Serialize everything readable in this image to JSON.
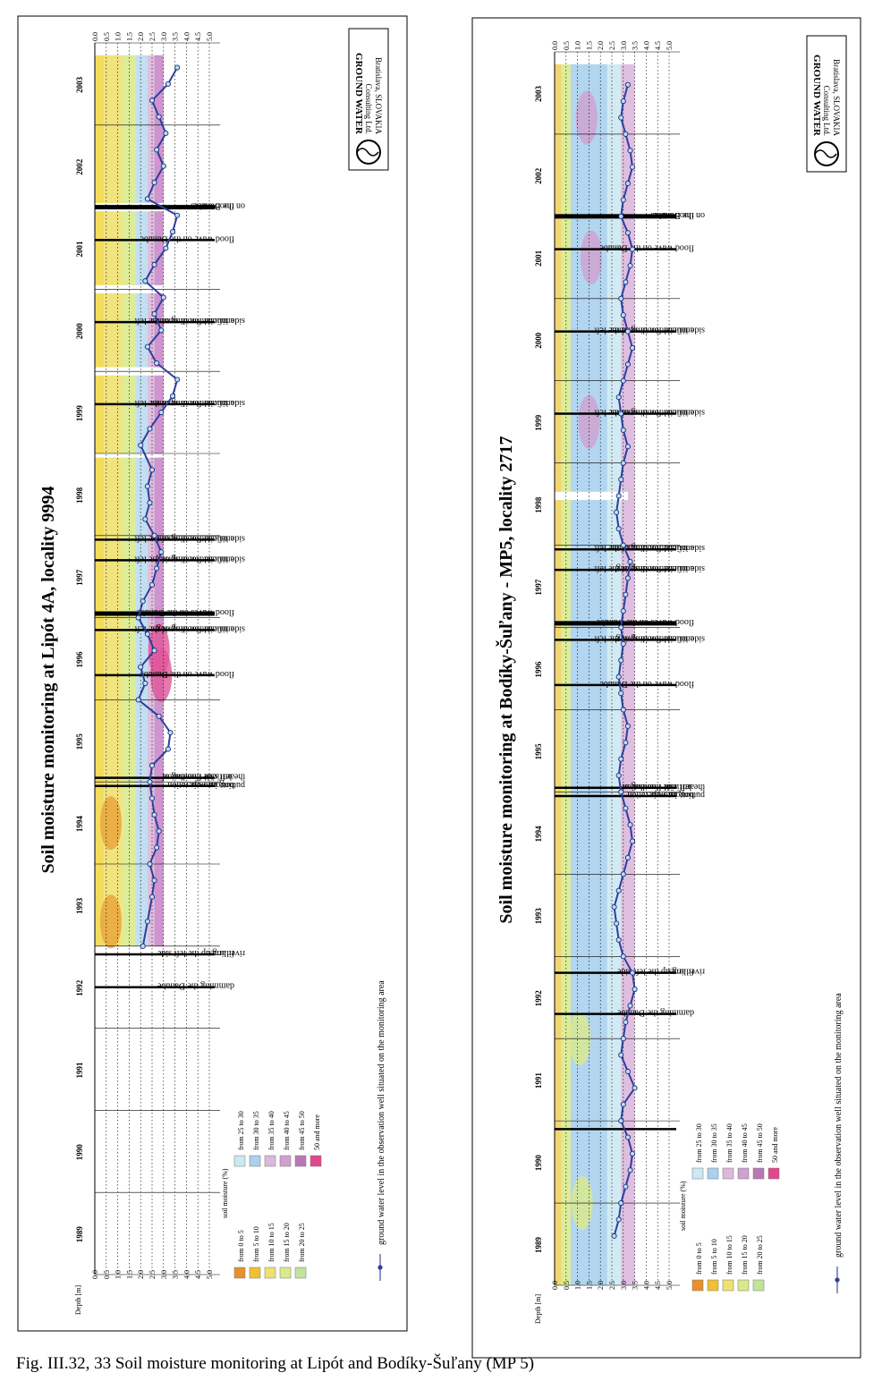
{
  "figure": {
    "caption": "Fig. III.32, 33  Soil moisture monitoring at Lipót and Bodíky-Šuľany (MP 5)"
  },
  "logo": {
    "lines": [
      "GROUND WATER",
      "Consulting Ltd.",
      "Bratislava, SLOVAKIA"
    ]
  },
  "chart_data": [
    {
      "type": "heatmap",
      "title": "Soil moisture monitoring at Lipót 4A, locality 9994",
      "xlabel": "Depth [m]",
      "depth_ticks": [
        "0.0",
        "0.5",
        "1.0",
        "1.5",
        "2.0",
        "2.5",
        "3.0",
        "3.5",
        "4.0",
        "4.5",
        "5.0"
      ],
      "depth_range": [
        0,
        5
      ],
      "years": [
        "1989",
        "1990",
        "1991",
        "1992",
        "1993",
        "1994",
        "1995",
        "1996",
        "1997",
        "1998",
        "1999",
        "2000",
        "2001",
        "2002",
        "2003"
      ],
      "time_range": [
        1989,
        2004
      ],
      "data_start": 1993.0,
      "moisture_bands": [
        {
          "from": 0.0,
          "to": 0.4,
          "color": "#f2d84a"
        },
        {
          "from": 0.4,
          "to": 1.2,
          "color": "#f0e070"
        },
        {
          "from": 1.2,
          "to": 1.8,
          "color": "#d9ea8c"
        },
        {
          "from": 1.8,
          "to": 2.3,
          "color": "#b9dcef"
        },
        {
          "from": 2.3,
          "to": 2.6,
          "color": "#dcb8dc"
        },
        {
          "from": 2.6,
          "to": 3.0,
          "color": "#c98ac9"
        }
      ],
      "hotspots": [
        {
          "t": 1993.3,
          "d": 0.7,
          "color": "#e8a23a"
        },
        {
          "t": 1994.5,
          "d": 0.7,
          "color": "#e8a23a"
        },
        {
          "t": 1996.6,
          "d": 2.8,
          "color": "#e0569a"
        },
        {
          "t": 1996.3,
          "d": 2.9,
          "color": "#e0569a"
        }
      ],
      "gaps": [
        [
          1998.95,
          1999.0
        ],
        [
          1999.95,
          2000.05
        ],
        [
          2000.95,
          2001.05
        ],
        [
          2001.95,
          2002.05
        ]
      ],
      "events": [
        {
          "t": 1992.5,
          "thick": false,
          "label": [
            "damming the Danube"
          ]
        },
        {
          "t": 1992.9,
          "thick": false,
          "label": [
            "filling up the left side",
            "river arms"
          ]
        },
        {
          "t": 1994.95,
          "thick": false,
          "label": [
            "bottom weir",
            "putting into operation"
          ]
        },
        {
          "t": 1995.05,
          "thick": false,
          "label": [
            "artificial flooding of",
            "the left side inundation"
          ]
        },
        {
          "t": 1996.3,
          "thick": false,
          "label": [
            "flood wave on the Danube"
          ]
        },
        {
          "t": 1996.85,
          "thick": false,
          "label": [
            "artificial flooding of the left",
            "side inundation in spring"
          ]
        },
        {
          "t": 1997.05,
          "thick": true,
          "label": [
            "flood waves on the Danube"
          ]
        },
        {
          "t": 1997.7,
          "thick": false,
          "label": [
            "artificial flooding of the left",
            "side inundation in spring"
          ]
        },
        {
          "t": 1997.95,
          "thick": false,
          "label": [
            "artificial flooding of the left",
            "side inundation in summer"
          ]
        },
        {
          "t": 1999.6,
          "thick": false,
          "label": [
            "artificial flooding of the left",
            "side inundation in summer"
          ]
        },
        {
          "t": 2000.6,
          "thick": false,
          "label": [
            "artificial flooding of the left",
            "side inundation in summer"
          ]
        },
        {
          "t": 2001.6,
          "thick": false,
          "label": [
            "flood wave on the Danube"
          ]
        },
        {
          "t": 2002.0,
          "thick": true,
          "label": [
            "flood waves",
            "on the Danube"
          ]
        }
      ],
      "series": [
        {
          "name": "ground water level in the observation well situated on the monitoring area",
          "x": [
            1993.0,
            1993.3,
            1993.6,
            1993.8,
            1994.0,
            1994.2,
            1994.4,
            1994.6,
            1994.8,
            1995.0,
            1995.2,
            1995.4,
            1995.6,
            1995.8,
            1996.0,
            1996.2,
            1996.4,
            1996.6,
            1996.8,
            1997.0,
            1997.2,
            1997.4,
            1997.6,
            1997.8,
            1998.0,
            1998.2,
            1998.4,
            1998.6,
            1998.8,
            1999.1,
            1999.3,
            1999.5,
            1999.7,
            1999.9,
            2000.1,
            2000.3,
            2000.5,
            2000.7,
            2000.9,
            2001.1,
            2001.3,
            2001.5,
            2001.7,
            2001.9,
            2002.1,
            2002.3,
            2002.5,
            2002.7,
            2002.9,
            2003.1,
            2003.3,
            2003.5,
            2003.7
          ],
          "y": [
            2.1,
            2.3,
            2.5,
            2.6,
            2.4,
            2.7,
            2.8,
            2.6,
            2.5,
            2.4,
            2.5,
            3.2,
            3.3,
            2.8,
            1.9,
            2.2,
            2.0,
            2.6,
            2.3,
            1.9,
            2.1,
            2.5,
            2.7,
            2.9,
            2.6,
            2.2,
            2.4,
            2.3,
            2.5,
            2.0,
            2.4,
            2.9,
            3.4,
            3.6,
            2.7,
            2.3,
            2.9,
            2.6,
            3.0,
            2.2,
            2.6,
            3.1,
            3.4,
            3.6,
            2.3,
            2.6,
            3.0,
            2.7,
            3.1,
            2.8,
            2.5,
            3.2,
            3.6
          ]
        }
      ],
      "legend": {
        "title": "soil moisture (%)",
        "items": [
          {
            "label": "from 0 to 5",
            "color": "#e8902c"
          },
          {
            "label": "from 5 to 10",
            "color": "#f0c030"
          },
          {
            "label": "from 10 to 15",
            "color": "#f0e070"
          },
          {
            "label": "from 15 to 20",
            "color": "#d9ea8c"
          },
          {
            "label": "from 20 to 25",
            "color": "#c2e39a"
          },
          {
            "label": "from 25 to 30",
            "color": "#cde8f2"
          },
          {
            "label": "from 30 to 35",
            "color": "#aad0ee"
          },
          {
            "label": "from 35 to 40",
            "color": "#dcb8dc"
          },
          {
            "label": "from 40 to 45",
            "color": "#d0a0d0"
          },
          {
            "label": "from 45 to 50",
            "color": "#b878b8"
          },
          {
            "label": "50 and more",
            "color": "#e0488a"
          }
        ],
        "gw_label": "ground water level in the observation well situated on the monitoring area"
      }
    },
    {
      "type": "heatmap",
      "title": "Soil moisture monitoring at Bodíky-Šuľany - MP5, locality 2717",
      "xlabel": "Depth [m]",
      "depth_ticks": [
        "0.0",
        "0.5",
        "1.0",
        "1.5",
        "2.0",
        "2.5",
        "3.0",
        "3.5",
        "4.0",
        "4.5",
        "5.0"
      ],
      "depth_range": [
        0,
        5
      ],
      "years": [
        "1989",
        "1990",
        "1991",
        "1992",
        "1993",
        "1994",
        "1995",
        "1996",
        "1997",
        "1998",
        "1999",
        "2000",
        "2001",
        "2002",
        "2003"
      ],
      "time_range": [
        1989,
        2004
      ],
      "data_start": 1989.0,
      "moisture_bands": [
        {
          "from": 0.0,
          "to": 0.3,
          "color": "#f0d060"
        },
        {
          "from": 0.3,
          "to": 0.7,
          "color": "#d9ea8c"
        },
        {
          "from": 0.7,
          "to": 2.3,
          "color": "#aad0ee"
        },
        {
          "from": 2.3,
          "to": 2.9,
          "color": "#cde8f2"
        },
        {
          "from": 2.9,
          "to": 3.5,
          "color": "#dcb8dc"
        }
      ],
      "hotspots": [
        {
          "t": 1990.0,
          "d": 1.2,
          "color": "#d9ea8c"
        },
        {
          "t": 1992.0,
          "d": 1.1,
          "color": "#d9ea8c"
        },
        {
          "t": 1999.5,
          "d": 1.5,
          "color": "#d0a0d0"
        },
        {
          "t": 2001.5,
          "d": 1.6,
          "color": "#d0a0d0"
        },
        {
          "t": 2003.2,
          "d": 1.4,
          "color": "#d0a0d0"
        }
      ],
      "gaps": [
        [
          1998.55,
          1998.65
        ]
      ],
      "events": [
        {
          "t": 1990.9,
          "thick": false,
          "label": []
        },
        {
          "t": 1992.3,
          "thick": false,
          "label": [
            "damming the Danube"
          ]
        },
        {
          "t": 1992.8,
          "thick": false,
          "label": [
            "filling up the left side",
            "river arms"
          ]
        },
        {
          "t": 1994.95,
          "thick": false,
          "label": [
            "bottom weir",
            "putting into operation"
          ]
        },
        {
          "t": 1995.05,
          "thick": false,
          "label": [
            "artificial flooding of",
            "the left side inundation"
          ]
        },
        {
          "t": 1996.3,
          "thick": false,
          "label": [
            "flood wave on the Danube"
          ]
        },
        {
          "t": 1996.85,
          "thick": false,
          "label": [
            "artificial flooding of the left",
            "side inundation in spring"
          ]
        },
        {
          "t": 1997.05,
          "thick": true,
          "label": [
            "flood waves on the Danube"
          ]
        },
        {
          "t": 1997.7,
          "thick": false,
          "label": [
            "artificial flooding of the left",
            "side inundation in spring"
          ]
        },
        {
          "t": 1997.95,
          "thick": false,
          "label": [
            "artificial flooding of the left",
            "side inundation in summer"
          ]
        },
        {
          "t": 1999.6,
          "thick": false,
          "label": [
            "artificial flooding of the left",
            "side inundation in summer"
          ]
        },
        {
          "t": 2000.6,
          "thick": false,
          "label": [
            "artificial flooding of the left",
            "side inundation in summer"
          ]
        },
        {
          "t": 2001.6,
          "thick": false,
          "label": [
            "flood wave on the Danube"
          ]
        },
        {
          "t": 2002.0,
          "thick": true,
          "label": [
            "flood waves",
            "on the Danube"
          ]
        }
      ],
      "series": [
        {
          "name": "ground water level in the observation well situated on the monitoring area",
          "x": [
            1989.6,
            1989.8,
            1990.0,
            1990.2,
            1990.4,
            1990.6,
            1990.8,
            1991.0,
            1991.2,
            1991.4,
            1991.6,
            1991.8,
            1992.0,
            1992.2,
            1992.4,
            1992.6,
            1992.8,
            1993.0,
            1993.2,
            1993.4,
            1993.6,
            1993.8,
            1994.0,
            1994.2,
            1994.4,
            1994.6,
            1994.8,
            1995.0,
            1995.2,
            1995.4,
            1995.6,
            1995.8,
            1996.0,
            1996.2,
            1996.4,
            1996.6,
            1996.8,
            1997.0,
            1997.2,
            1997.4,
            1997.6,
            1997.8,
            1998.0,
            1998.2,
            1998.4,
            1998.6,
            1998.8,
            1999.0,
            1999.2,
            1999.4,
            1999.6,
            1999.8,
            2000.0,
            2000.2,
            2000.4,
            2000.6,
            2000.8,
            2001.0,
            2001.2,
            2001.4,
            2001.6,
            2001.8,
            2002.0,
            2002.2,
            2002.4,
            2002.6,
            2002.8,
            2003.0,
            2003.2,
            2003.4,
            2003.6
          ],
          "y": [
            2.6,
            2.8,
            2.9,
            3.1,
            3.3,
            3.4,
            3.2,
            2.9,
            3.0,
            3.5,
            3.2,
            2.9,
            3.0,
            3.1,
            3.3,
            3.5,
            3.4,
            3.0,
            2.8,
            2.7,
            2.6,
            2.8,
            3.0,
            3.2,
            3.4,
            3.3,
            3.1,
            2.9,
            2.8,
            2.9,
            3.1,
            3.2,
            3.0,
            2.9,
            2.8,
            2.9,
            3.0,
            2.9,
            3.0,
            3.1,
            3.2,
            3.3,
            3.0,
            2.8,
            2.7,
            2.8,
            2.9,
            3.0,
            3.2,
            3.0,
            2.9,
            2.8,
            3.0,
            3.2,
            3.4,
            3.2,
            3.0,
            2.9,
            3.1,
            3.3,
            3.4,
            3.2,
            2.9,
            3.0,
            3.2,
            3.4,
            3.3,
            3.1,
            2.9,
            3.0,
            3.2
          ]
        }
      ],
      "legend": {
        "title": "soil moisture (%)",
        "items": [
          {
            "label": "from 0 to 5",
            "color": "#e8902c"
          },
          {
            "label": "from 5 to 10",
            "color": "#f0c030"
          },
          {
            "label": "from 10 to 15",
            "color": "#f0e070"
          },
          {
            "label": "from 15 to 20",
            "color": "#d9ea8c"
          },
          {
            "label": "from 20 to 25",
            "color": "#c2e39a"
          },
          {
            "label": "from 25 to 30",
            "color": "#cde8f2"
          },
          {
            "label": "from 30 to 35",
            "color": "#aad0ee"
          },
          {
            "label": "from 35 to 40",
            "color": "#dcb8dc"
          },
          {
            "label": "from 40 to 45",
            "color": "#d0a0d0"
          },
          {
            "label": "from 45 to 50",
            "color": "#b878b8"
          },
          {
            "label": "50 and more",
            "color": "#e0488a"
          }
        ],
        "gw_label": "ground water level in the observation well situated on the monitoring area"
      }
    }
  ]
}
